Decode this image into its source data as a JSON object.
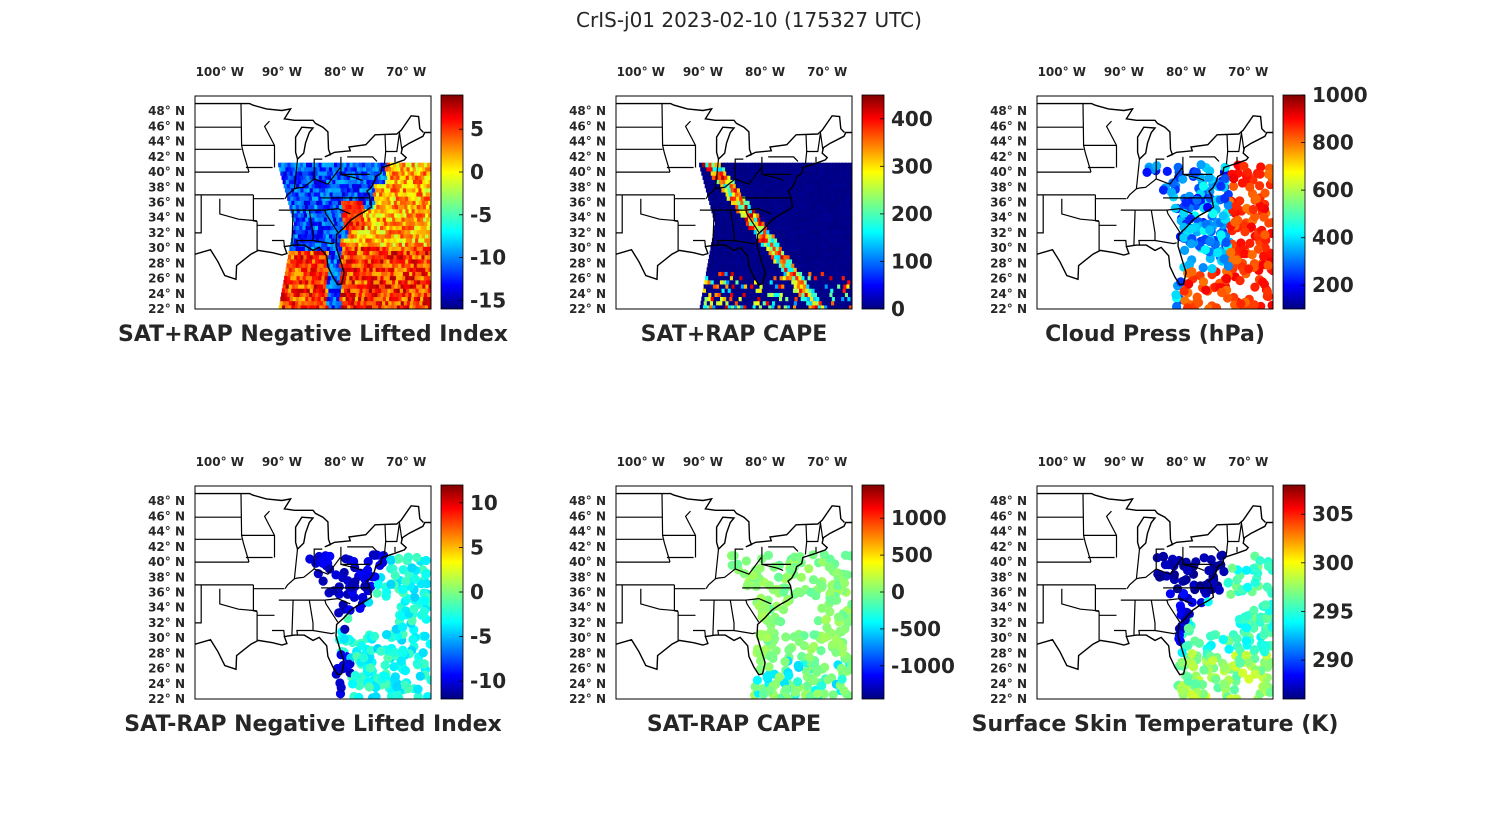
{
  "figure": {
    "title": "CrIS-j01 2023-02-10 (175327 UTC)",
    "lon_tick_labels": [
      "100° W",
      "90° W",
      "80° W",
      "70° W"
    ],
    "lat_tick_labels": [
      "48° N",
      "46° N",
      "44° N",
      "42° N",
      "40° N",
      "38° N",
      "36° N",
      "34° N",
      "32° N",
      "30° N",
      "28° N",
      "26° N",
      "24° N",
      "22° N"
    ],
    "colormap": "jet",
    "map_region": "Eastern United States and western Atlantic",
    "lon_range": [
      -104,
      -66
    ],
    "lat_range": [
      22,
      50
    ]
  },
  "panels": [
    {
      "id": "sat-rap-negative-lifted-index",
      "title": "SAT+RAP Negative Lifted Index",
      "colorbar_ticks": [
        "5",
        "0",
        "-5",
        "-10",
        "-15"
      ],
      "colorbar_range": [
        -16,
        9
      ],
      "data_shape": "swath",
      "data_description_range": [
        -15,
        8
      ]
    },
    {
      "id": "sat-rap-cape",
      "title": "SAT+RAP CAPE",
      "colorbar_ticks": [
        "400",
        "300",
        "200",
        "100",
        "0"
      ],
      "colorbar_range": [
        0,
        450
      ],
      "data_shape": "swath"
    },
    {
      "id": "cloud-press",
      "title": "Cloud Press (hPa)",
      "colorbar_ticks": [
        "1000",
        "800",
        "600",
        "400",
        "200"
      ],
      "colorbar_range": [
        100,
        1000
      ],
      "data_shape": "dots"
    },
    {
      "id": "sat-minus-rap-negative-lifted-index",
      "title": "SAT-RAP Negative Lifted Index",
      "colorbar_ticks": [
        "10",
        "5",
        "0",
        "-5",
        "-10"
      ],
      "colorbar_range": [
        -12,
        12
      ],
      "data_shape": "dots"
    },
    {
      "id": "sat-minus-rap-cape",
      "title": "SAT-RAP CAPE",
      "colorbar_ticks": [
        "1000",
        "500",
        "0",
        "-500",
        "-1000"
      ],
      "colorbar_range": [
        -1450,
        1450
      ],
      "data_shape": "dots"
    },
    {
      "id": "surface-skin-temperature",
      "title": "Surface Skin Temperature (K)",
      "colorbar_ticks": [
        "305",
        "300",
        "295",
        "290"
      ],
      "colorbar_range": [
        286,
        308
      ],
      "data_shape": "dots"
    }
  ],
  "colors": {
    "background": "#ffffff",
    "text": "#262626",
    "outline": "#000000",
    "jet_low": "#00007f",
    "jet_high": "#7f0000"
  }
}
